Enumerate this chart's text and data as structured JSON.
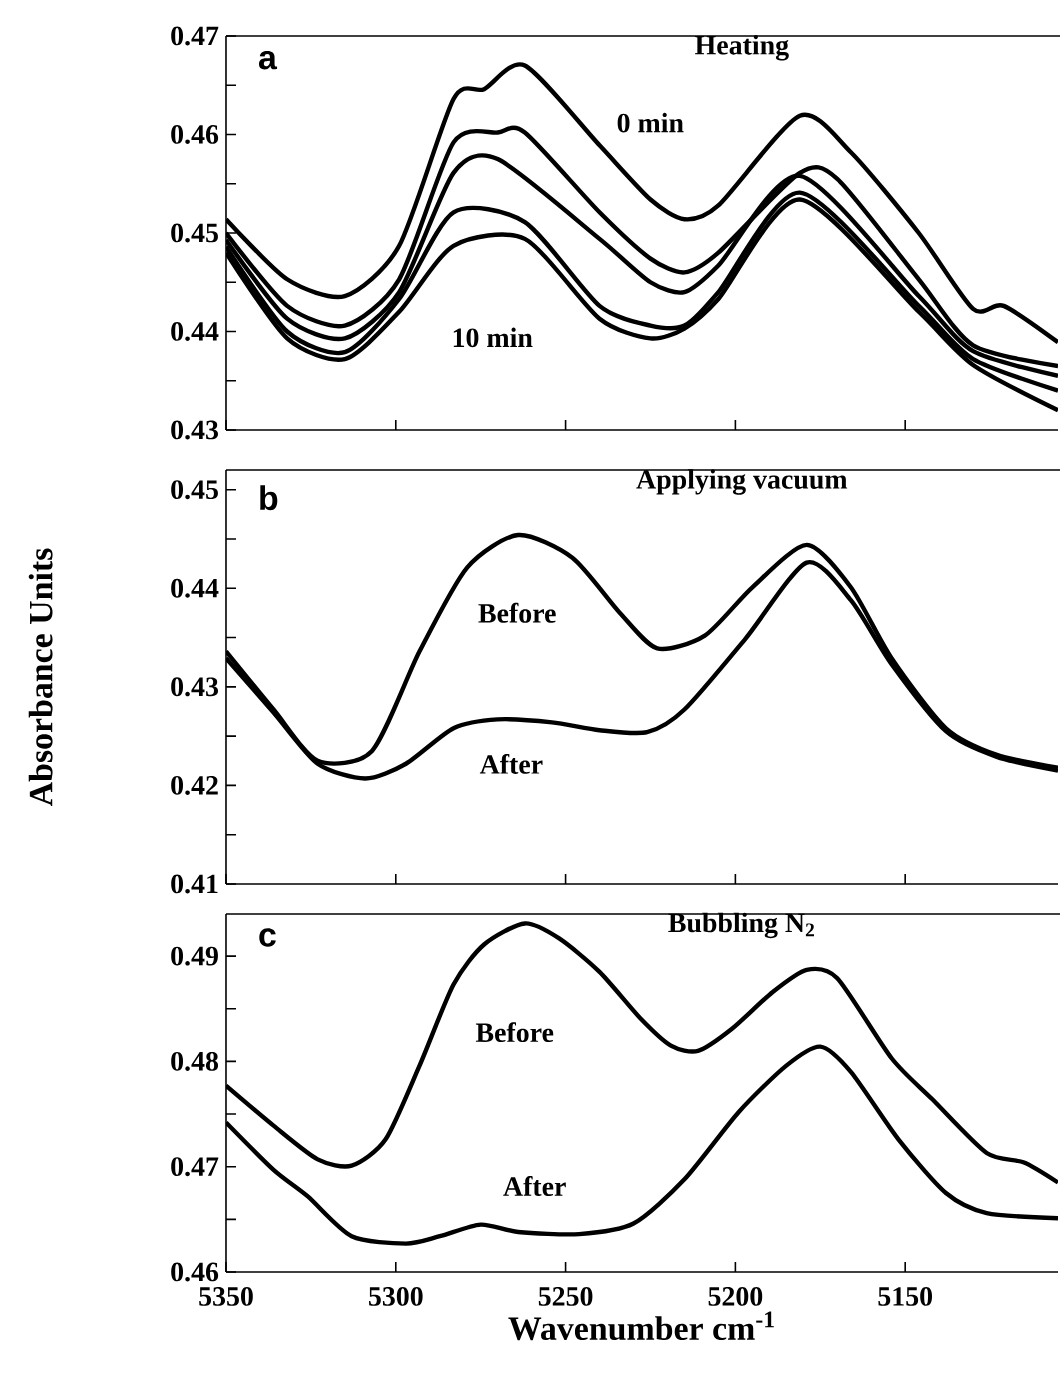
{
  "chart_data": [
    {
      "type": "line",
      "title": "Heating",
      "xlim": [
        5350,
        5105
      ],
      "xticks": [
        {
          "value": 5350,
          "label": null
        },
        {
          "value": 5300,
          "label": null
        },
        {
          "value": 5250,
          "label": null
        },
        {
          "value": 5200,
          "label": null
        },
        {
          "value": 5150,
          "label": null
        }
      ],
      "ylim": [
        0.43,
        0.47
      ],
      "yticks": [
        0.43,
        {
          "value": 0.435,
          "label": null
        },
        0.44,
        {
          "value": 0.445,
          "label": null
        },
        0.45,
        {
          "value": 0.455,
          "label": null
        },
        0.46,
        {
          "value": 0.465,
          "label": null
        },
        0.47
      ],
      "tick_labels": "y",
      "annotations": [
        "a"
      ],
      "series": [
        {
          "name": "0 min",
          "color": "#000000",
          "x": [
            5350,
            5332,
            5315,
            5299,
            5283,
            5274,
            5262,
            5240,
            5225,
            5215,
            5205,
            5181,
            5166,
            5146,
            5130,
            5121,
            5105
          ],
          "values": [
            0.4514,
            0.4453,
            0.4436,
            0.4487,
            0.4636,
            0.4646,
            0.467,
            0.4589,
            0.4534,
            0.4514,
            0.4528,
            0.4619,
            0.4582,
            0.45,
            0.4423,
            0.4426,
            0.4389
          ]
        },
        {
          "color": "#000000",
          "x": [
            5350,
            5332,
            5315,
            5299,
            5283,
            5270,
            5262,
            5240,
            5225,
            5215,
            5205,
            5181,
            5170,
            5146,
            5130,
            5105
          ],
          "values": [
            0.45,
            0.4426,
            0.4406,
            0.4453,
            0.4592,
            0.4602,
            0.4602,
            0.4521,
            0.4474,
            0.446,
            0.448,
            0.4561,
            0.4555,
            0.4453,
            0.4386,
            0.4365
          ]
        },
        {
          "color": "#000000",
          "x": [
            5350,
            5332,
            5315,
            5299,
            5283,
            5270,
            5240,
            5225,
            5215,
            5205,
            5181,
            5146,
            5130,
            5105
          ],
          "values": [
            0.4493,
            0.4413,
            0.4393,
            0.444,
            0.4561,
            0.4575,
            0.4494,
            0.445,
            0.444,
            0.4467,
            0.4558,
            0.4436,
            0.438,
            0.4355
          ]
        },
        {
          "color": "#000000",
          "x": [
            5350,
            5332,
            5315,
            5299,
            5283,
            5262,
            5240,
            5225,
            5215,
            5205,
            5181,
            5146,
            5130,
            5105
          ],
          "values": [
            0.4486,
            0.44,
            0.4379,
            0.4433,
            0.4521,
            0.4511,
            0.4426,
            0.4406,
            0.4406,
            0.444,
            0.4541,
            0.4426,
            0.4372,
            0.434
          ]
        },
        {
          "name": "10 min",
          "color": "#000000",
          "x": [
            5350,
            5332,
            5315,
            5299,
            5283,
            5262,
            5240,
            5225,
            5215,
            5205,
            5181,
            5146,
            5130,
            5105
          ],
          "values": [
            0.448,
            0.4393,
            0.4372,
            0.442,
            0.4487,
            0.4494,
            0.4413,
            0.4393,
            0.4403,
            0.4433,
            0.4534,
            0.442,
            0.4366,
            0.432
          ]
        }
      ]
    },
    {
      "type": "line",
      "title": "Applying vacuum",
      "ylabel": "Absorbance Units",
      "xlim": [
        5350,
        5105
      ],
      "xticks": [
        {
          "value": 5350,
          "label": null
        },
        {
          "value": 5300,
          "label": null
        },
        {
          "value": 5250,
          "label": null
        },
        {
          "value": 5200,
          "label": null
        },
        {
          "value": 5150,
          "label": null
        }
      ],
      "ylim": [
        0.41,
        0.452
      ],
      "yticks": [
        0.41,
        {
          "value": 0.415,
          "label": null
        },
        0.42,
        {
          "value": 0.425,
          "label": null
        },
        0.43,
        {
          "value": 0.435,
          "label": null
        },
        0.44,
        {
          "value": 0.445,
          "label": null
        },
        0.45
      ],
      "tick_labels": "y",
      "annotations": [
        "b"
      ],
      "series": [
        {
          "name": "Before",
          "color": "#000000",
          "x": [
            5350,
            5336,
            5323,
            5307,
            5293,
            5279,
            5264,
            5248,
            5234,
            5223,
            5209,
            5195,
            5179,
            5166,
            5154,
            5138,
            5123,
            5105
          ],
          "values": [
            0.4336,
            0.4277,
            0.4225,
            0.4235,
            0.4336,
            0.4421,
            0.4454,
            0.4431,
            0.4375,
            0.4339,
            0.4352,
            0.4401,
            0.4444,
            0.4401,
            0.4329,
            0.4258,
            0.4231,
            0.4218
          ]
        },
        {
          "name": "After",
          "color": "#000000",
          "x": [
            5350,
            5336,
            5323,
            5309,
            5297,
            5283,
            5270,
            5254,
            5240,
            5226,
            5215,
            5197,
            5179,
            5166,
            5154,
            5138,
            5123,
            5105
          ],
          "values": [
            0.4329,
            0.4274,
            0.4222,
            0.4207,
            0.4222,
            0.4258,
            0.4267,
            0.4264,
            0.4256,
            0.4254,
            0.4277,
            0.4349,
            0.4426,
            0.4388,
            0.4323,
            0.4255,
            0.4229,
            0.4215
          ]
        }
      ]
    },
    {
      "type": "line",
      "title": "Bubbling N$_{2}$",
      "xlabel": "Wavenumber cm$^{-1}$",
      "xlim": [
        5350,
        5105
      ],
      "xticks": [
        5350,
        5300,
        5250,
        5200,
        5150
      ],
      "ylim": [
        0.46,
        0.494
      ],
      "yticks": [
        0.46,
        {
          "value": 0.465,
          "label": null
        },
        0.47,
        {
          "value": 0.475,
          "label": null
        },
        0.48,
        {
          "value": 0.485,
          "label": null
        },
        0.49
      ],
      "annotations": [
        "c"
      ],
      "series": [
        {
          "name": "Before",
          "color": "#000000",
          "x": [
            5350,
            5336,
            5323,
            5313,
            5303,
            5293,
            5283,
            5274,
            5262,
            5252,
            5240,
            5228,
            5219,
            5211,
            5201,
            5189,
            5179,
            5170,
            5154,
            5142,
            5126,
            5115,
            5105
          ],
          "values": [
            0.4777,
            0.4739,
            0.4707,
            0.4701,
            0.4726,
            0.4796,
            0.4873,
            0.4911,
            0.4931,
            0.4917,
            0.4885,
            0.4841,
            0.4815,
            0.481,
            0.4831,
            0.4866,
            0.4887,
            0.4879,
            0.4803,
            0.4764,
            0.4713,
            0.4704,
            0.4685
          ]
        },
        {
          "name": "After",
          "color": "#000000",
          "x": [
            5350,
            5336,
            5326,
            5313,
            5297,
            5287,
            5275,
            5264,
            5246,
            5230,
            5215,
            5199,
            5185,
            5175,
            5166,
            5152,
            5138,
            5126,
            5105
          ],
          "values": [
            0.4742,
            0.4697,
            0.4672,
            0.4634,
            0.4627,
            0.4634,
            0.4645,
            0.4638,
            0.4636,
            0.4646,
            0.4688,
            0.4752,
            0.4796,
            0.4814,
            0.479,
            0.4726,
            0.4675,
            0.4656,
            0.4651
          ]
        }
      ]
    }
  ]
}
